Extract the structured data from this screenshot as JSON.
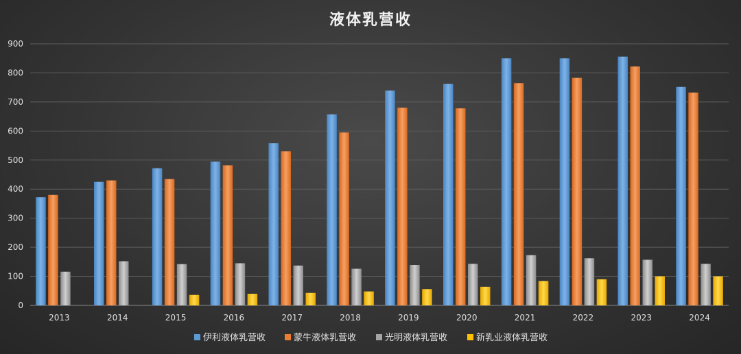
{
  "chart_data": {
    "type": "bar",
    "title": "液体乳营收",
    "xlabel": "",
    "ylabel": "",
    "ylim": [
      0,
      900
    ],
    "yticks": [
      0,
      100,
      200,
      300,
      400,
      500,
      600,
      700,
      800,
      900
    ],
    "grid": true,
    "legend_position": "bottom",
    "categories": [
      "2013",
      "2014",
      "2015",
      "2016",
      "2017",
      "2018",
      "2019",
      "2020",
      "2021",
      "2022",
      "2023",
      "2024"
    ],
    "series": [
      {
        "name": "伊利液体乳营收",
        "color": "#5b9bd5",
        "values": [
          372,
          425,
          472,
          495,
          558,
          657,
          739,
          762,
          850,
          850,
          856,
          752
        ]
      },
      {
        "name": "蒙牛液体乳营收",
        "color": "#ed7d31",
        "values": [
          380,
          430,
          435,
          482,
          530,
          595,
          680,
          678,
          765,
          783,
          822,
          732
        ]
      },
      {
        "name": "光明液体乳营收",
        "color": "#a5a5a5",
        "values": [
          116,
          152,
          142,
          145,
          137,
          126,
          139,
          143,
          173,
          162,
          157,
          143
        ]
      },
      {
        "name": "新乳业液体乳营收",
        "color": "#ffc000",
        "values": [
          null,
          null,
          36,
          40,
          43,
          48,
          56,
          64,
          84,
          90,
          100,
          100
        ]
      }
    ]
  }
}
